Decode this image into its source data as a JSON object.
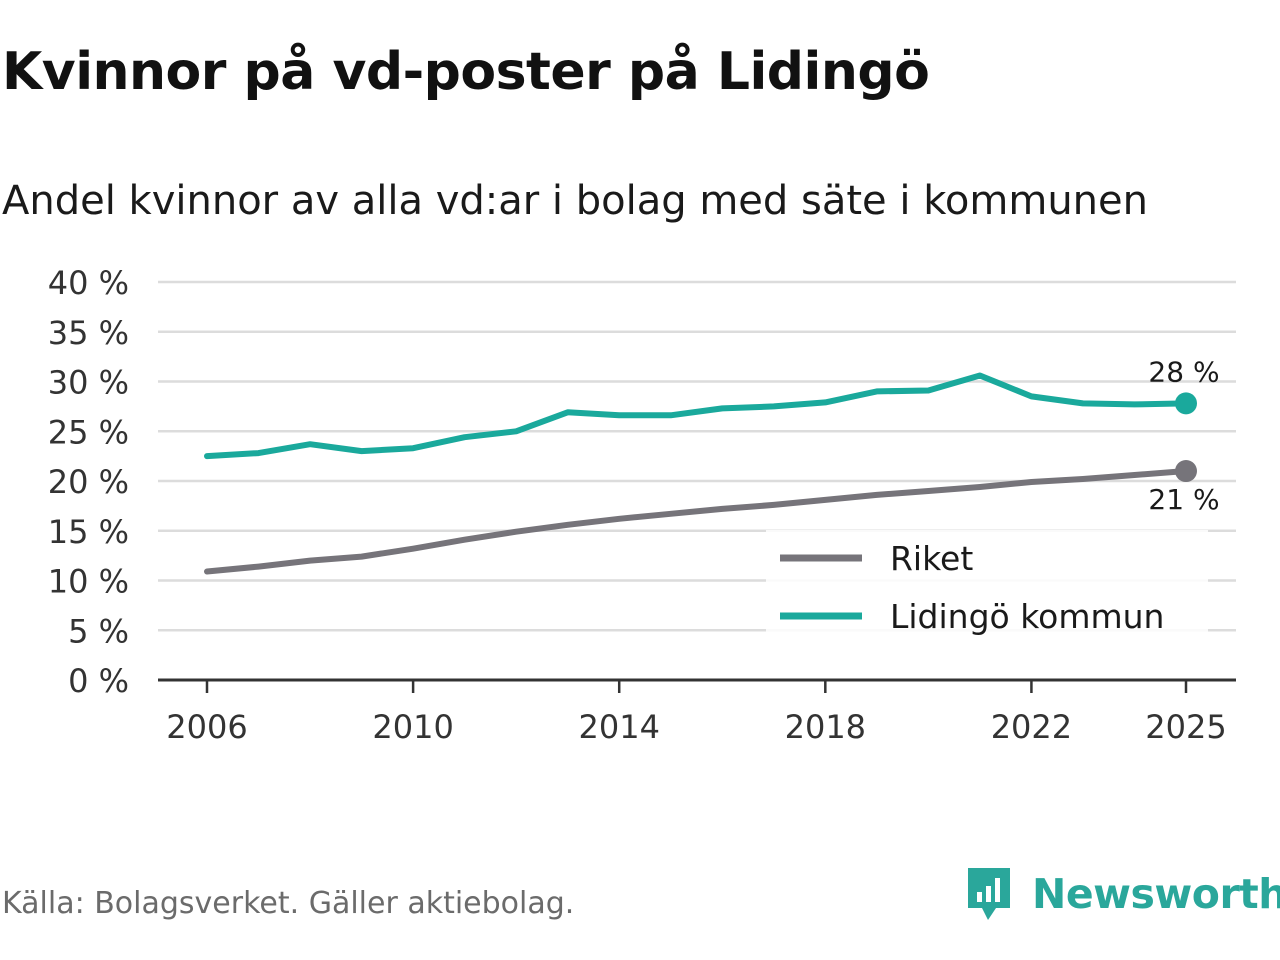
{
  "title": "Kvinnor på vd-poster på Lidingö",
  "subtitle": "Andel kvinnor av alla vd:ar i bolag med säte i kommunen",
  "source": "Källa: Bolagsverket. Gäller aktiebolag.",
  "brand": {
    "name": "Newsworthy",
    "icon": "newsworthy-logo-icon",
    "color": "#2aa79b"
  },
  "chart_data": {
    "type": "line",
    "title": "Kvinnor på vd-poster på Lidingö",
    "subtitle": "Andel kvinnor av alla vd:ar i bolag med säte i kommunen",
    "xlabel": "",
    "ylabel": "",
    "ylim": [
      0,
      40
    ],
    "yticks": [
      0,
      5,
      10,
      15,
      20,
      25,
      30,
      35,
      40
    ],
    "ytick_labels": [
      "0 %",
      "5 %",
      "10 %",
      "15 %",
      "20 %",
      "25 %",
      "30 %",
      "35 %",
      "40 %"
    ],
    "xlim": [
      2006,
      2025
    ],
    "xticks": [
      2006,
      2010,
      2014,
      2018,
      2022,
      2025
    ],
    "xtick_labels": [
      "2006",
      "2010",
      "2014",
      "2018",
      "2022",
      "2025"
    ],
    "grid": true,
    "legend_position": "bottom-right",
    "x": [
      2006,
      2007,
      2008,
      2009,
      2010,
      2011,
      2012,
      2013,
      2014,
      2015,
      2016,
      2017,
      2018,
      2019,
      2020,
      2021,
      2022,
      2023,
      2024,
      2025
    ],
    "series": [
      {
        "name": "Riket",
        "color": "#76747a",
        "values": [
          10.9,
          11.4,
          12.0,
          12.4,
          13.2,
          14.1,
          14.9,
          15.6,
          16.2,
          16.7,
          17.2,
          17.6,
          18.1,
          18.6,
          19.0,
          19.4,
          19.9,
          20.2,
          20.6,
          21.0
        ],
        "end_label": "21 %"
      },
      {
        "name": "Lidingö kommun",
        "color": "#1aa99c",
        "values": [
          22.5,
          22.8,
          23.7,
          23.0,
          23.3,
          24.4,
          25.0,
          26.9,
          26.6,
          26.6,
          27.3,
          27.5,
          27.9,
          29.0,
          29.1,
          30.6,
          28.5,
          27.8,
          27.7,
          27.8
        ],
        "end_label": "28 %"
      }
    ]
  }
}
